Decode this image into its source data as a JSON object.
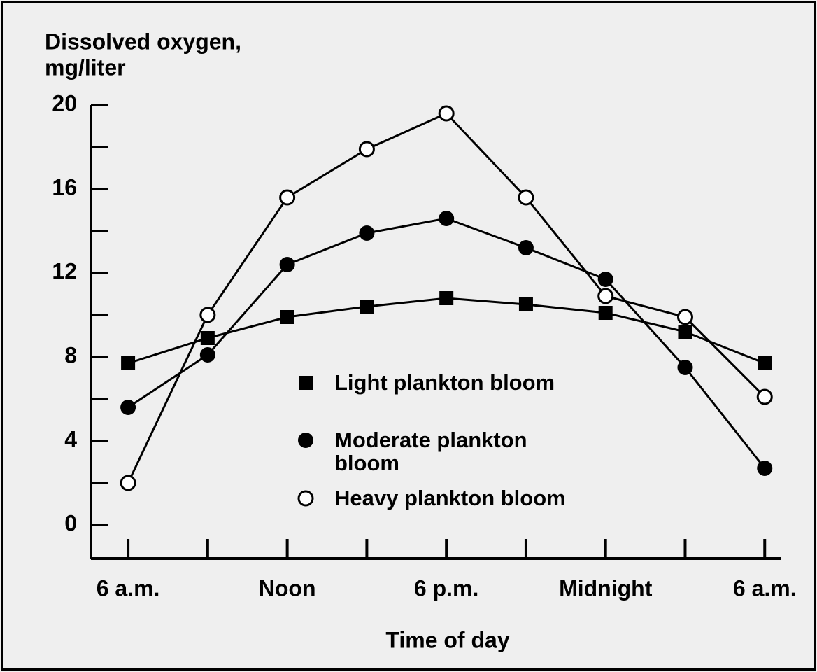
{
  "chart_data": {
    "type": "line",
    "y_label": [
      "Dissolved oxygen,",
      "mg/liter"
    ],
    "x_label": "Time of day",
    "x": [
      0,
      3,
      6,
      9,
      12,
      15,
      18,
      21,
      24
    ],
    "xlim": [
      -1.4,
      24.6
    ],
    "xticks": [
      {
        "value": 0,
        "label": "6 a.m."
      },
      {
        "value": 6,
        "label": "Noon"
      },
      {
        "value": 12,
        "label": "6 p.m."
      },
      {
        "value": 18,
        "label": "Midnight"
      },
      {
        "value": 24,
        "label": "6 a.m."
      }
    ],
    "xminor_ticks": [
      3,
      9,
      15,
      21
    ],
    "ylim": [
      -1.6,
      20
    ],
    "yticks": [
      0,
      4,
      8,
      12,
      16,
      20
    ],
    "yminor_ticks": [
      2,
      6,
      10,
      14,
      18
    ],
    "series": [
      {
        "name": "Light plankton bloom",
        "color": "#000000",
        "marker": "square",
        "values": [
          7.7,
          8.9,
          9.9,
          10.4,
          10.8,
          10.5,
          10.1,
          9.2,
          7.7
        ]
      },
      {
        "name": "Moderate plankton bloom",
        "color": "#000000",
        "marker": "circle",
        "values": [
          5.6,
          8.1,
          12.4,
          13.9,
          14.6,
          13.2,
          11.7,
          7.5,
          2.7
        ]
      },
      {
        "name": "Heavy plankton bloom",
        "color": "#000000",
        "marker": "open-circle",
        "values": [
          2.0,
          10.0,
          15.6,
          17.9,
          19.6,
          15.6,
          10.9,
          9.9,
          6.1
        ]
      }
    ]
  }
}
